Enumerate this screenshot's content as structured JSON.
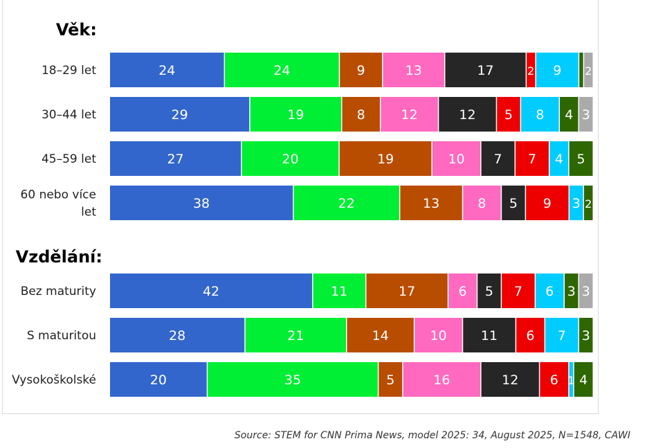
{
  "source": "Source: STEM for CNN Prima News, model 2025: 34, August 2025, N=1548, CAWI",
  "colors": [
    "#3366cc",
    "#00ee33",
    "#b84d00",
    "#ff69c0",
    "#262626",
    "#ee0000",
    "#00ccff",
    "#2e6600",
    "#aaaaaa"
  ],
  "chart_data": {
    "type": "bar",
    "stacked": true,
    "orientation": "horizontal",
    "groups": [
      {
        "title": "Věk:",
        "rows": [
          {
            "label": [
              "18–29 let"
            ],
            "values": [
              24,
              24,
              9,
              13,
              17,
              2,
              9,
              1,
              2
            ]
          },
          {
            "label": [
              "30–44 let"
            ],
            "values": [
              29,
              19,
              8,
              12,
              12,
              5,
              8,
              4,
              3
            ]
          },
          {
            "label": [
              "45–59 let"
            ],
            "values": [
              27,
              20,
              19,
              10,
              7,
              7,
              4,
              5,
              0
            ]
          },
          {
            "label": [
              "60 nebo více",
              "let"
            ],
            "values": [
              38,
              22,
              13,
              8,
              5,
              9,
              3,
              2,
              0
            ]
          }
        ]
      },
      {
        "title": "Vzdělání:",
        "rows": [
          {
            "label": [
              "Bez maturity"
            ],
            "values": [
              42,
              11,
              17,
              6,
              5,
              7,
              6,
              3,
              3
            ]
          },
          {
            "label": [
              "S maturitou"
            ],
            "values": [
              28,
              21,
              14,
              10,
              11,
              6,
              7,
              3,
              0
            ]
          },
          {
            "label": [
              "Vysokoškolské"
            ],
            "values": [
              20,
              35,
              5,
              16,
              12,
              6,
              1,
              4,
              0
            ]
          }
        ]
      }
    ]
  }
}
